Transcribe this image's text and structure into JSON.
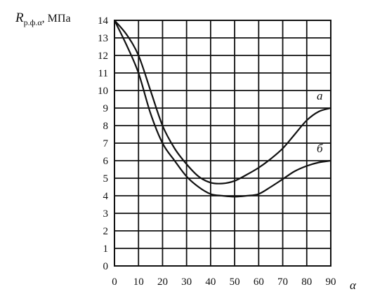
{
  "chart_data": {
    "type": "line",
    "ylabel_main": "R",
    "ylabel_sub": "р.ф.α",
    "ylabel_unit": ", МПа",
    "xlabel": "α",
    "xlim": [
      0,
      90
    ],
    "ylim": [
      0,
      14
    ],
    "x_ticks": [
      0,
      10,
      20,
      30,
      40,
      50,
      60,
      70,
      80,
      90
    ],
    "y_ticks": [
      0,
      1,
      2,
      3,
      4,
      5,
      6,
      7,
      8,
      9,
      10,
      11,
      12,
      13,
      14
    ],
    "grid": true,
    "series": [
      {
        "name": "а",
        "x": [
          0,
          5,
          10,
          15,
          20,
          25,
          30,
          35,
          40,
          45,
          50,
          55,
          60,
          65,
          70,
          75,
          80,
          85,
          90
        ],
        "y": [
          14,
          13.2,
          12.0,
          10.0,
          8.0,
          6.7,
          5.8,
          5.1,
          4.75,
          4.7,
          4.85,
          5.2,
          5.6,
          6.1,
          6.7,
          7.5,
          8.3,
          8.8,
          9.0
        ]
      },
      {
        "name": "б",
        "x": [
          0,
          5,
          10,
          15,
          20,
          25,
          30,
          35,
          40,
          45,
          50,
          55,
          60,
          65,
          70,
          75,
          80,
          85,
          90
        ],
        "y": [
          14,
          12.6,
          11.0,
          8.7,
          7.0,
          6.0,
          5.1,
          4.5,
          4.1,
          4.0,
          3.95,
          4.0,
          4.1,
          4.5,
          4.95,
          5.4,
          5.7,
          5.9,
          6.0
        ]
      }
    ]
  }
}
